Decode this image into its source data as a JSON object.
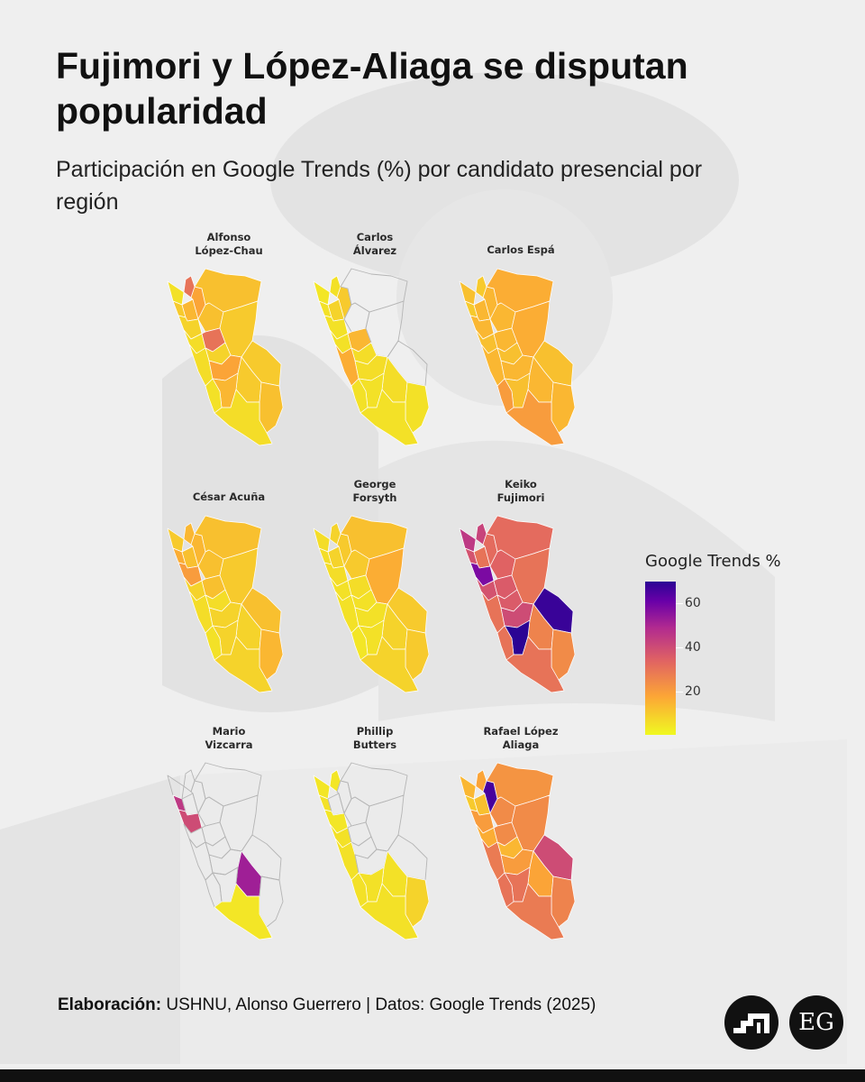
{
  "title": "Fujimori y López-Aliaga se disputan popularidad",
  "subtitle": "Participación en Google Trends (%) por candidato presencial por región",
  "chart_data": {
    "type": "heatmap",
    "subtype": "choropleth-small-multiples",
    "map": "Perú (regiones)",
    "panels": [
      {
        "candidate": "Alfonso López-Chau",
        "title_lines": [
          "Alfonso",
          "López-Chau"
        ],
        "values": {
          "north_coast": 5,
          "far_north": 30,
          "amazonas": 18,
          "lambayeque": 10,
          "la_libertad": 8,
          "cajamarca": 14,
          "loreto": 12,
          "san_martin": 12,
          "ancash": 6,
          "huanuco": 30,
          "ucayali": 10,
          "pasco": 8,
          "lima": 6,
          "junin": 18,
          "ica_coast": 5,
          "ayacucho": 14,
          "cusco": 10,
          "madre_de_dios": 10,
          "south_coast": 6,
          "puno": 12
        }
      },
      {
        "candidate": "Carlos Álvarez",
        "title_lines": [
          "Carlos",
          "Álvarez"
        ],
        "values": {
          "north_coast": 4,
          "far_north": 5,
          "lambayeque": 5,
          "la_libertad": 5,
          "cajamarca": 8,
          "amazonas": 10,
          "ancash": 5,
          "huanuco": 14,
          "pasco": 6,
          "lima": 16,
          "junin": 6,
          "ica_coast": 5,
          "ayacucho": 5,
          "cusco": 6,
          "south_coast": 5,
          "puno": 5
        }
      },
      {
        "candidate": "Carlos Espá",
        "title_lines": [
          "Carlos Espá"
        ],
        "values": {
          "north_coast": 12,
          "far_north": 10,
          "lambayeque": 10,
          "la_libertad": 14,
          "cajamarca": 14,
          "amazonas": 14,
          "loreto": 16,
          "san_martin": 14,
          "ancash": 12,
          "huanuco": 14,
          "ucayali": 16,
          "pasco": 12,
          "lima": 14,
          "junin": 14,
          "ica_coast": 20,
          "ayacucho": 12,
          "cusco": 14,
          "madre_de_dios": 12,
          "south_coast": 20,
          "puno": 14
        }
      },
      {
        "candidate": "César Acuña",
        "title_lines": [
          "César Acuña"
        ],
        "values": {
          "north_coast": 10,
          "far_north": 14,
          "lambayeque": 16,
          "la_libertad": 20,
          "cajamarca": 12,
          "amazonas": 14,
          "loreto": 12,
          "san_martin": 12,
          "ancash": 8,
          "huanuco": 12,
          "ucayali": 10,
          "pasco": 6,
          "lima": 6,
          "junin": 8,
          "ica_coast": 5,
          "ayacucho": 8,
          "cusco": 8,
          "madre_de_dios": 12,
          "south_coast": 8,
          "puno": 14
        }
      },
      {
        "candidate": "George Forsyth",
        "title_lines": [
          "George",
          "Forsyth"
        ],
        "values": {
          "north_coast": 6,
          "far_north": 8,
          "lambayeque": 6,
          "la_libertad": 6,
          "cajamarca": 8,
          "amazonas": 10,
          "loreto": 12,
          "san_martin": 10,
          "ancash": 5,
          "huanuco": 6,
          "ucayali": 16,
          "pasco": 5,
          "lima": 5,
          "junin": 5,
          "ica_coast": 4,
          "ayacucho": 5,
          "cusco": 8,
          "madre_de_dios": 10,
          "south_coast": 8,
          "puno": 10
        }
      },
      {
        "candidate": "Keiko Fujimori",
        "title_lines": [
          "Keiko",
          "Fujimori"
        ],
        "values": {
          "north_coast": 45,
          "far_north": 42,
          "lambayeque": 38,
          "la_libertad": 58,
          "cajamarca": 30,
          "amazonas": 32,
          "loreto": 32,
          "san_martin": 34,
          "ancash": 38,
          "huanuco": 36,
          "ucayali": 30,
          "pasco": 36,
          "lima": 30,
          "junin": 40,
          "ica_coast": 30,
          "ayacucho": 70,
          "cusco": 26,
          "madre_de_dios": 68,
          "south_coast": 30,
          "puno": 24
        }
      },
      {
        "candidate": "Mario Vizcarra",
        "title_lines": [
          "Mario",
          "Vizcarra"
        ],
        "values": {
          "lambayeque": 45,
          "la_libertad": 40,
          "cusco": 52,
          "south_coast": 4
        }
      },
      {
        "candidate": "Phillip Butters",
        "title_lines": [
          "Phillip",
          "Butters"
        ],
        "values": {
          "north_coast": 4,
          "far_north": 4,
          "lambayeque": 5,
          "la_libertad": 4,
          "ancash": 5,
          "lima": 5,
          "ica_coast": 5,
          "ayacucho": 5,
          "cusco": 5,
          "south_coast": 5,
          "puno": 8
        }
      },
      {
        "candidate": "Rafael López Aliaga",
        "title_lines": [
          "Rafael López",
          "Aliaga"
        ],
        "values": {
          "north_coast": 14,
          "far_north": 18,
          "lambayeque": 10,
          "la_libertad": 20,
          "cajamarca": 12,
          "amazonas": 66,
          "loreto": 22,
          "san_martin": 24,
          "ancash": 16,
          "huanuco": 24,
          "ucayali": 24,
          "pasco": 14,
          "lima": 28,
          "junin": 20,
          "ica_coast": 30,
          "ayacucho": 30,
          "cusco": 18,
          "madre_de_dios": 40,
          "south_coast": 28,
          "puno": 26
        }
      }
    ],
    "legend": {
      "title": "Google Trends %",
      "ticks": [
        "20",
        "40",
        "60"
      ],
      "range": [
        0,
        70
      ],
      "colormap": "plasma (reversed)",
      "position": "right"
    }
  },
  "footer": {
    "label": "Elaboración:",
    "text": " USHNU, Alonso Guerrero | Datos: Google Trends (2025)"
  },
  "logos": {
    "eg": "EG",
    "ushnu_icon": "ushnu-stair-icon"
  }
}
